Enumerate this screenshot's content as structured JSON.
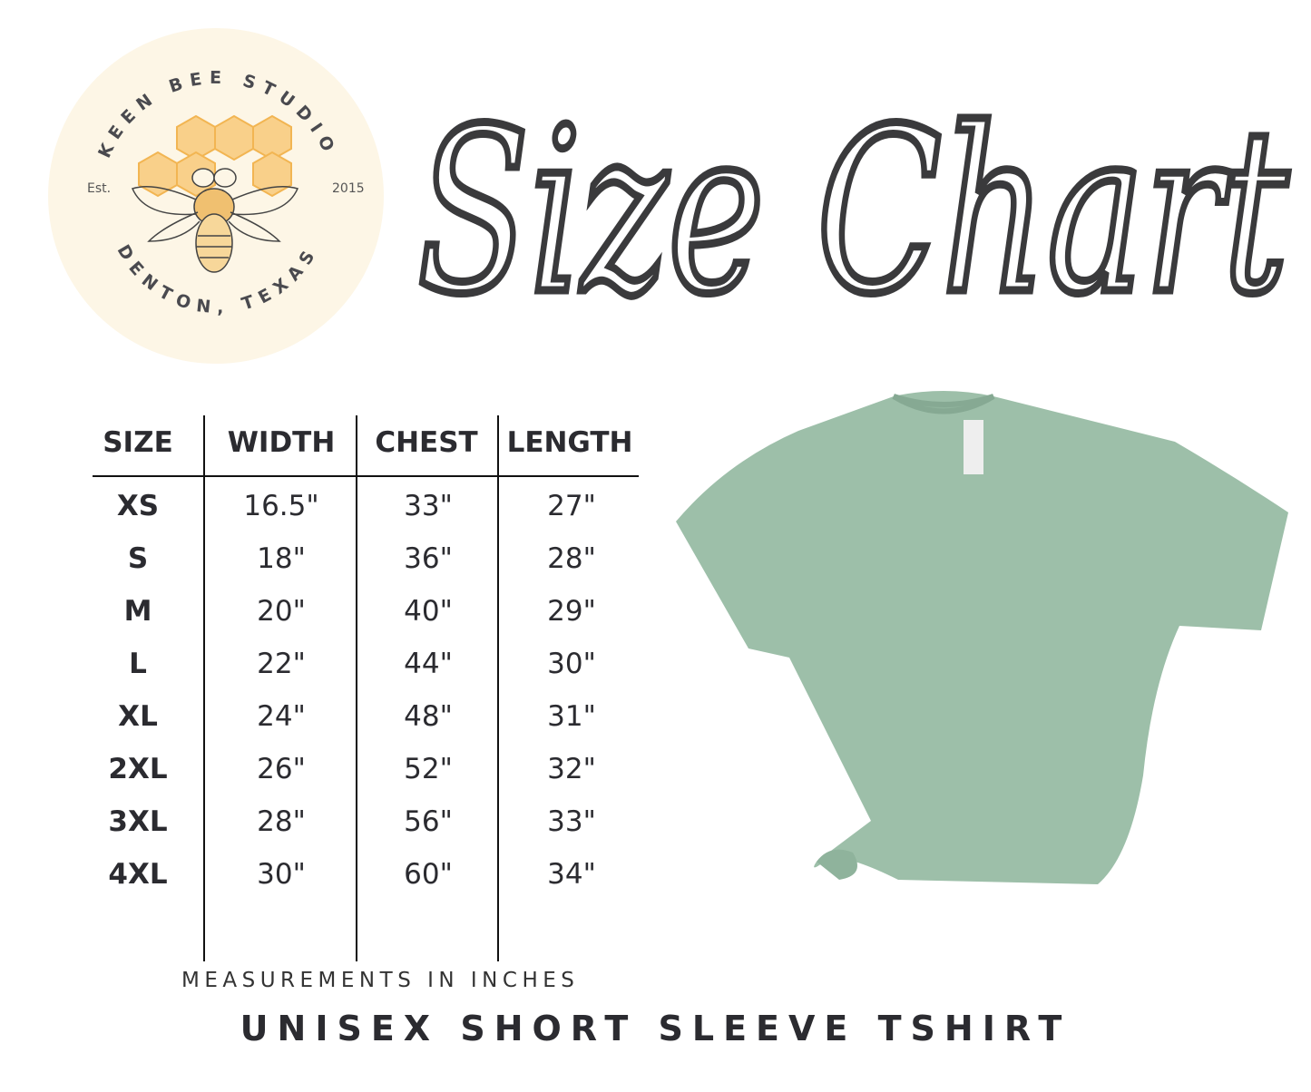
{
  "logo": {
    "name": "KEEN BEE STUDIO",
    "location": "DENTON, TEXAS",
    "est_label": "Est.",
    "est_year": "2015",
    "background_color": "#fdf6e6",
    "honey_color": "#f7c46a",
    "icon": "bee-on-honeycomb"
  },
  "title": "Size Chart",
  "table": {
    "headers": [
      "SIZE",
      "WIDTH",
      "CHEST",
      "LENGTH"
    ],
    "rows": [
      [
        "XS",
        "16.5\"",
        "33\"",
        "27\""
      ],
      [
        "S",
        "18\"",
        "36\"",
        "28\""
      ],
      [
        "M",
        "20\"",
        "40\"",
        "29\""
      ],
      [
        "L",
        "22\"",
        "44\"",
        "30\""
      ],
      [
        "XL",
        "24\"",
        "48\"",
        "31\""
      ],
      [
        "2XL",
        "26\"",
        "52\"",
        "32\""
      ],
      [
        "3XL",
        "28\"",
        "56\"",
        "33\""
      ],
      [
        "4XL",
        "30\"",
        "60\"",
        "34\""
      ]
    ]
  },
  "note": "MEASUREMENTS IN INCHES",
  "product": "UNISEX SHORT SLEEVE TSHIRT",
  "shirt_color": "#9dbfa9"
}
